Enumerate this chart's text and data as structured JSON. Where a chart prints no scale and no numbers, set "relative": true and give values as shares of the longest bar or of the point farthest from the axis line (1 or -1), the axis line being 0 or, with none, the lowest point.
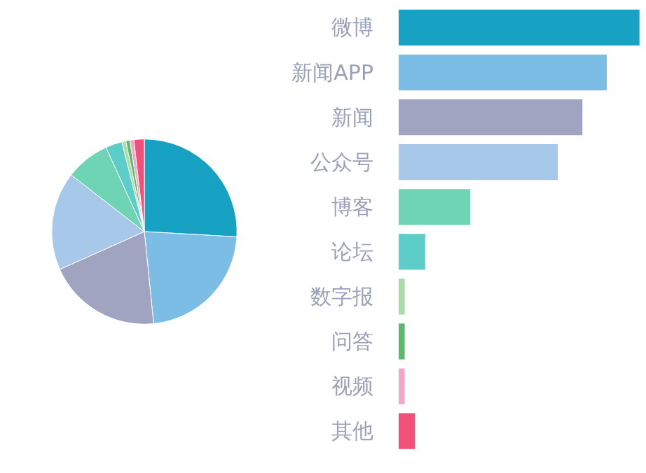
{
  "chart_data": [
    {
      "type": "pie",
      "categories": [
        null,
        null,
        null,
        null,
        null,
        null,
        null,
        null,
        null,
        null
      ],
      "values": [
        25.9,
        22.5,
        19.9,
        17.2,
        7.7,
        2.9,
        0.7,
        0.7,
        0.7,
        1.8
      ],
      "colors": [
        "#17a2c4",
        "#7cbde6",
        "#a0a4c0",
        "#a8c8ea",
        "#6fd4b4",
        "#5ccdc8",
        "#a8dca8",
        "#5cb86c",
        "#f4a8c8",
        "#f0507a"
      ]
    },
    {
      "type": "bar",
      "orientation": "horizontal",
      "relative": true,
      "categories": [
        "微博",
        "新闻APP",
        "新闻",
        "公众号",
        "博客",
        "论坛",
        "数字报",
        "问答",
        "视频",
        "其他"
      ],
      "values": [
        1,
        0.864,
        0.763,
        0.661,
        0.297,
        0.11,
        0.025,
        0.025,
        0.025,
        0.068
      ],
      "colors": [
        "#17a2c4",
        "#7cbde6",
        "#a0a4c0",
        "#a8c8ea",
        "#6fd4b4",
        "#5ccdc8",
        "#a8dca8",
        "#5cb86c",
        "#f4a8c8",
        "#f0507a"
      ]
    }
  ]
}
